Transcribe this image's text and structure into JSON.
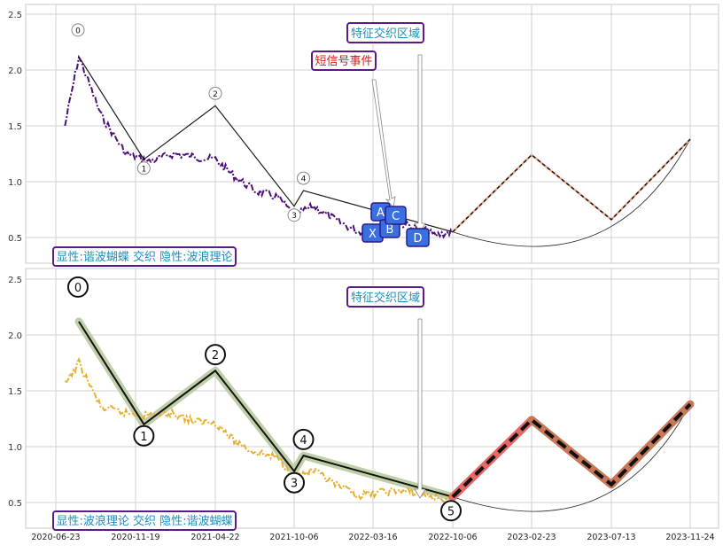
{
  "x_tick_labels": [
    "2020-06-23",
    "2020-11-19",
    "2021-04-22",
    "2021-10-06",
    "2022-03-16",
    "2022-10-06",
    "2023-02-23",
    "2023-07-13",
    "2023-11-24"
  ],
  "colors": {
    "grid": "#d0d0d0",
    "frame": "#c8c8c8",
    "price_top": "#4b0f7a",
    "price_bottom": "#e6b030",
    "wave_line": "#111111",
    "wave_band": "#bfcfa8",
    "proj_red": "#e86868",
    "proj_brown": "#c87858",
    "box_border": "#5a1a8a",
    "box_text": "#1a8fc0",
    "box_text_red": "#d02020",
    "point_box_fill": "#3a6fe0",
    "point_box_border": "#2a1a8a"
  },
  "chart_data": [
    {
      "type": "line",
      "panel": "top",
      "ylim": [
        0.3,
        2.6
      ],
      "y_ticks": [
        "0.5",
        "1.0",
        "1.5",
        "2.0",
        "2.5"
      ],
      "caption": "显性:谐波蝴蝶 交织 隐性:波浪理论",
      "annotations": [
        "特征交织区域",
        "短信号事件"
      ],
      "wave_labels": [
        "0",
        "1",
        "2",
        "3",
        "4"
      ],
      "harmonic_labels": [
        "X",
        "A",
        "B",
        "C",
        "D"
      ],
      "series": [
        {
          "role": "price",
          "x": [
            "2020-07-10",
            "2020-08-05",
            "2020-09-15",
            "2020-11-01",
            "2020-12-15",
            "2021-02-01",
            "2021-03-15",
            "2021-04-22",
            "2021-06-01",
            "2021-07-15",
            "2021-09-01",
            "2021-10-06",
            "2021-11-15",
            "2022-01-01",
            "2022-02-15",
            "2022-04-15",
            "2022-06-01",
            "2022-07-15",
            "2022-08-20",
            "2022-10-06"
          ],
          "y": [
            1.5,
            2.12,
            1.6,
            1.25,
            1.18,
            1.25,
            1.22,
            1.2,
            1.05,
            0.92,
            0.86,
            0.7,
            0.78,
            0.65,
            0.55,
            0.6,
            0.62,
            0.58,
            0.52,
            0.55
          ]
        },
        {
          "role": "wave",
          "x": [
            "2020-08-05",
            "2020-12-05",
            "2021-04-22",
            "2021-10-06",
            "2021-10-25",
            "2022-10-06"
          ],
          "y": [
            2.12,
            1.2,
            1.68,
            0.78,
            0.92,
            0.55
          ]
        },
        {
          "role": "projection",
          "x": [
            "2022-10-06",
            "2023-02-23",
            "2023-07-13",
            "2023-11-24"
          ],
          "y": [
            0.55,
            1.24,
            0.66,
            1.38
          ]
        }
      ]
    },
    {
      "type": "line",
      "panel": "bottom",
      "ylim": [
        0.3,
        2.6
      ],
      "y_ticks": [
        "0.5",
        "1.0",
        "1.5",
        "2.0",
        "2.5"
      ],
      "caption": "显性:波浪理论 交织 隐性:谐波蝴蝶",
      "annotations": [
        "特征交织区域"
      ],
      "wave_labels": [
        "0",
        "1",
        "2",
        "3",
        "4",
        "5"
      ],
      "series": [
        {
          "role": "price",
          "x": [
            "2020-07-10",
            "2020-08-05",
            "2020-09-15",
            "2020-11-01",
            "2020-12-15",
            "2021-02-01",
            "2021-03-15",
            "2021-04-22",
            "2021-06-01",
            "2021-07-15",
            "2021-09-01",
            "2021-10-06",
            "2021-11-15",
            "2022-01-01",
            "2022-02-15",
            "2022-04-15",
            "2022-06-01",
            "2022-07-15",
            "2022-08-20",
            "2022-10-06"
          ],
          "y": [
            1.55,
            1.75,
            1.35,
            1.3,
            1.28,
            1.3,
            1.22,
            1.22,
            1.05,
            0.95,
            0.9,
            0.74,
            0.78,
            0.65,
            0.56,
            0.6,
            0.6,
            0.58,
            0.55,
            0.52
          ]
        },
        {
          "role": "wave",
          "x": [
            "2020-08-05",
            "2020-12-05",
            "2021-04-22",
            "2021-10-06",
            "2021-10-25",
            "2022-10-06"
          ],
          "y": [
            2.12,
            1.2,
            1.68,
            0.78,
            0.92,
            0.55
          ]
        },
        {
          "role": "projection",
          "x": [
            "2022-10-06",
            "2023-02-23",
            "2023-07-13",
            "2023-11-24"
          ],
          "y": [
            0.55,
            1.24,
            0.66,
            1.38
          ]
        }
      ]
    }
  ]
}
